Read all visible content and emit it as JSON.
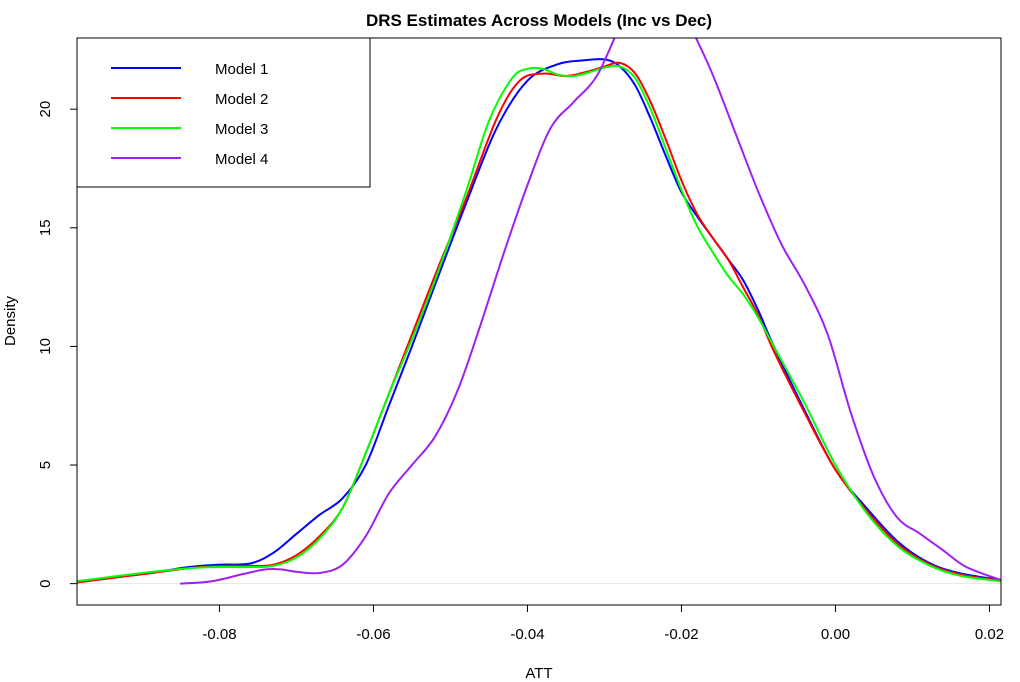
{
  "chart_data": {
    "type": "line",
    "title": "DRS Estimates Across Models (Inc vs Dec)",
    "xlabel": "ATT",
    "ylabel": "Density",
    "xlim": [
      -0.0985,
      0.0215
    ],
    "ylim": [
      -0.9,
      23
    ],
    "x_ticks": [
      -0.08,
      -0.06,
      -0.04,
      -0.02,
      0.0,
      0.02
    ],
    "x_tick_labels": [
      "-0.08",
      "-0.06",
      "-0.04",
      "-0.02",
      "0.00",
      "0.02"
    ],
    "y_ticks": [
      0,
      5,
      10,
      15,
      20
    ],
    "y_tick_labels": [
      "0",
      "5",
      "10",
      "15",
      "20"
    ],
    "grid": false,
    "baseline": 0,
    "legend_position": "top-left",
    "series": [
      {
        "name": "Model 1",
        "color": "#0000ff",
        "x": [
          -0.0985,
          -0.09,
          -0.084,
          -0.08,
          -0.076,
          -0.073,
          -0.07,
          -0.067,
          -0.064,
          -0.061,
          -0.058,
          -0.055,
          -0.052,
          -0.048,
          -0.044,
          -0.04,
          -0.036,
          -0.033,
          -0.03,
          -0.028,
          -0.026,
          -0.024,
          -0.022,
          -0.02,
          -0.018,
          -0.016,
          -0.014,
          -0.012,
          -0.01,
          -0.008,
          -0.004,
          0.0,
          0.004,
          0.008,
          0.012,
          0.016,
          0.0215
        ],
        "y": [
          0.1,
          0.4,
          0.7,
          0.8,
          0.85,
          1.3,
          2.1,
          2.9,
          3.6,
          5.0,
          7.5,
          10.0,
          12.6,
          16.0,
          19.2,
          21.2,
          21.9,
          22.05,
          22.1,
          21.8,
          21.0,
          19.6,
          18.0,
          16.5,
          15.5,
          14.6,
          13.7,
          12.8,
          11.5,
          10.0,
          7.3,
          4.8,
          3.2,
          1.8,
          0.9,
          0.45,
          0.15
        ]
      },
      {
        "name": "Model 2",
        "color": "#ff0000",
        "x": [
          -0.0985,
          -0.09,
          -0.084,
          -0.08,
          -0.076,
          -0.073,
          -0.07,
          -0.067,
          -0.064,
          -0.061,
          -0.058,
          -0.055,
          -0.052,
          -0.048,
          -0.044,
          -0.041,
          -0.038,
          -0.035,
          -0.032,
          -0.03,
          -0.028,
          -0.026,
          -0.024,
          -0.022,
          -0.02,
          -0.018,
          -0.016,
          -0.014,
          -0.012,
          -0.01,
          -0.008,
          -0.004,
          0.0,
          0.004,
          0.008,
          0.012,
          0.016,
          0.0215
        ],
        "y": [
          0.05,
          0.4,
          0.65,
          0.75,
          0.75,
          0.8,
          1.2,
          2.0,
          3.2,
          5.5,
          8.0,
          10.5,
          13.0,
          16.2,
          19.6,
          21.2,
          21.5,
          21.4,
          21.6,
          21.8,
          21.95,
          21.5,
          20.3,
          18.7,
          17.0,
          15.6,
          14.6,
          13.7,
          12.5,
          11.3,
          9.8,
          7.2,
          4.8,
          3.1,
          1.7,
          0.85,
          0.4,
          0.12
        ]
      },
      {
        "name": "Model 3",
        "color": "#00ff00",
        "x": [
          -0.0985,
          -0.09,
          -0.084,
          -0.08,
          -0.076,
          -0.073,
          -0.07,
          -0.067,
          -0.064,
          -0.061,
          -0.058,
          -0.055,
          -0.052,
          -0.048,
          -0.045,
          -0.042,
          -0.04,
          -0.038,
          -0.036,
          -0.034,
          -0.032,
          -0.03,
          -0.028,
          -0.026,
          -0.024,
          -0.022,
          -0.02,
          -0.018,
          -0.016,
          -0.014,
          -0.012,
          -0.01,
          -0.008,
          -0.004,
          0.0,
          0.004,
          0.008,
          0.012,
          0.016,
          0.0215
        ],
        "y": [
          0.1,
          0.45,
          0.65,
          0.7,
          0.7,
          0.75,
          1.1,
          1.9,
          3.2,
          5.5,
          8.0,
          10.3,
          12.8,
          16.5,
          19.5,
          21.3,
          21.7,
          21.7,
          21.45,
          21.4,
          21.55,
          21.75,
          21.8,
          21.3,
          20.0,
          18.3,
          16.6,
          15.1,
          14.0,
          13.0,
          12.2,
          11.2,
          10.0,
          7.6,
          5.0,
          3.0,
          1.6,
          0.8,
          0.35,
          0.1
        ]
      },
      {
        "name": "Model 4",
        "color": "#a020f0",
        "x": [
          -0.085,
          -0.081,
          -0.077,
          -0.074,
          -0.072,
          -0.07,
          -0.067,
          -0.064,
          -0.061,
          -0.058,
          -0.055,
          -0.052,
          -0.049,
          -0.046,
          -0.043,
          -0.04,
          -0.037,
          -0.034,
          -0.031,
          -0.028,
          -0.025,
          -0.022,
          -0.019,
          -0.016,
          -0.013,
          -0.01,
          -0.007,
          -0.004,
          -0.001,
          0.002,
          0.005,
          0.008,
          0.011,
          0.014,
          0.017,
          0.0215
        ],
        "y": [
          0.0,
          0.1,
          0.4,
          0.6,
          0.6,
          0.5,
          0.45,
          0.8,
          2.0,
          3.8,
          5.0,
          6.2,
          8.2,
          11.0,
          14.0,
          16.8,
          19.2,
          20.3,
          21.4,
          23.5,
          25.5,
          25.5,
          23.6,
          21.5,
          19.0,
          16.5,
          14.3,
          12.6,
          10.5,
          7.2,
          4.5,
          2.8,
          2.1,
          1.4,
          0.7,
          0.15
        ]
      }
    ]
  }
}
